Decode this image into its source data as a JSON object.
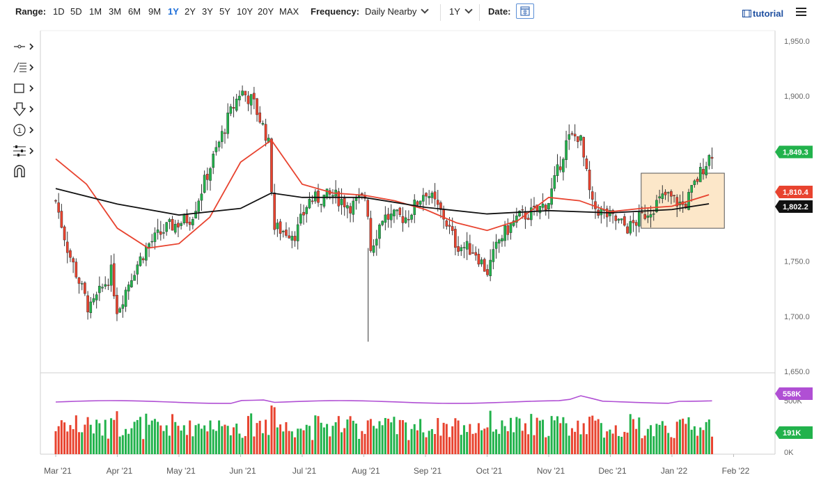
{
  "toolbar": {
    "range_label": "Range:",
    "ranges": [
      "1D",
      "5D",
      "1M",
      "3M",
      "6M",
      "9M",
      "1Y",
      "2Y",
      "3Y",
      "5Y",
      "10Y",
      "20Y",
      "MAX"
    ],
    "active_range": "1Y",
    "frequency_label": "Frequency:",
    "frequency_value": "Daily Nearby",
    "period_value": "1Y",
    "date_label": "Date:",
    "tutorial_label": "tutorial"
  },
  "colors": {
    "up": "#22b24c",
    "down": "#e8432f",
    "ma_fast": "#e8432f",
    "ma_slow": "#111111",
    "rsi": "#b04fd4",
    "highlight": "#fbe3c0",
    "accent": "#1e6fd9"
  },
  "chart_data": {
    "type": "candlestick",
    "title": "",
    "x_ticks": [
      "Mar '21",
      "Apr '21",
      "May '21",
      "Jun '21",
      "Jul '21",
      "Aug '21",
      "Sep '21",
      "Oct '21",
      "Nov '21",
      "Dec '21",
      "Jan '22",
      "Feb '22"
    ],
    "y_ticks": [
      "1,950.0",
      "1,900.0",
      "1,750.0",
      "1,700.0",
      "1,650.0"
    ],
    "y_range": [
      1650,
      1950
    ],
    "price_badges": [
      {
        "label": "1,849.3",
        "value": 1849.3,
        "color": "#22b24c"
      },
      {
        "label": "1,810.4",
        "value": 1810.4,
        "color": "#e8432f"
      },
      {
        "label": "1,802.2",
        "value": 1802.2,
        "color": "#111111"
      }
    ],
    "highlight_zone": {
      "start": "mid Dec '21",
      "end": "late Jan '22",
      "low": 1780,
      "high": 1830
    },
    "moving_average_fast": [
      {
        "month": 0,
        "v": 1843
      },
      {
        "month": 0.5,
        "v": 1820
      },
      {
        "month": 1,
        "v": 1780
      },
      {
        "month": 1.5,
        "v": 1762
      },
      {
        "month": 2,
        "v": 1766
      },
      {
        "month": 2.5,
        "v": 1790
      },
      {
        "month": 3,
        "v": 1840
      },
      {
        "month": 3.5,
        "v": 1860
      },
      {
        "month": 4,
        "v": 1820
      },
      {
        "month": 4.5,
        "v": 1812
      },
      {
        "month": 5,
        "v": 1810
      },
      {
        "month": 5.5,
        "v": 1805
      },
      {
        "month": 6,
        "v": 1797
      },
      {
        "month": 6.5,
        "v": 1785
      },
      {
        "month": 7,
        "v": 1778
      },
      {
        "month": 7.5,
        "v": 1787
      },
      {
        "month": 8,
        "v": 1808
      },
      {
        "month": 8.5,
        "v": 1805
      },
      {
        "month": 9,
        "v": 1795
      },
      {
        "month": 9.5,
        "v": 1798
      },
      {
        "month": 10,
        "v": 1800
      },
      {
        "month": 10.6,
        "v": 1810.4
      }
    ],
    "moving_average_slow": [
      {
        "month": 0,
        "v": 1816
      },
      {
        "month": 1,
        "v": 1802
      },
      {
        "month": 2,
        "v": 1792
      },
      {
        "month": 3,
        "v": 1798
      },
      {
        "month": 3.5,
        "v": 1812
      },
      {
        "month": 4,
        "v": 1808
      },
      {
        "month": 5,
        "v": 1808
      },
      {
        "month": 6,
        "v": 1799
      },
      {
        "month": 7,
        "v": 1793
      },
      {
        "month": 8,
        "v": 1796
      },
      {
        "month": 9,
        "v": 1794
      },
      {
        "month": 10,
        "v": 1797
      },
      {
        "month": 10.6,
        "v": 1802.2
      }
    ],
    "price_path": [
      {
        "month": 0,
        "v": 1805
      },
      {
        "month": 0.2,
        "v": 1760
      },
      {
        "month": 0.55,
        "v": 1705
      },
      {
        "month": 0.9,
        "v": 1740
      },
      {
        "month": 1.0,
        "v": 1705
      },
      {
        "month": 1.25,
        "v": 1740
      },
      {
        "month": 1.5,
        "v": 1765
      },
      {
        "month": 1.8,
        "v": 1780
      },
      {
        "month": 2.2,
        "v": 1790
      },
      {
        "month": 2.5,
        "v": 1835
      },
      {
        "month": 2.8,
        "v": 1880
      },
      {
        "month": 3.0,
        "v": 1905
      },
      {
        "month": 3.2,
        "v": 1895
      },
      {
        "month": 3.45,
        "v": 1860
      },
      {
        "month": 3.55,
        "v": 1780
      },
      {
        "month": 3.9,
        "v": 1775
      },
      {
        "month": 4.1,
        "v": 1805
      },
      {
        "month": 4.5,
        "v": 1810
      },
      {
        "month": 4.8,
        "v": 1800
      },
      {
        "month": 5.05,
        "v": 1810
      },
      {
        "month": 5.1,
        "v": 1760
      },
      {
        "month": 5.3,
        "v": 1790
      },
      {
        "month": 5.7,
        "v": 1790
      },
      {
        "month": 6.0,
        "v": 1815
      },
      {
        "month": 6.3,
        "v": 1790
      },
      {
        "month": 6.5,
        "v": 1765
      },
      {
        "month": 6.8,
        "v": 1760
      },
      {
        "month": 7.0,
        "v": 1740
      },
      {
        "month": 7.2,
        "v": 1770
      },
      {
        "month": 7.5,
        "v": 1790
      },
      {
        "month": 7.8,
        "v": 1795
      },
      {
        "month": 8.0,
        "v": 1805
      },
      {
        "month": 8.3,
        "v": 1860
      },
      {
        "month": 8.5,
        "v": 1865
      },
      {
        "month": 8.7,
        "v": 1800
      },
      {
        "month": 9.0,
        "v": 1790
      },
      {
        "month": 9.3,
        "v": 1780
      },
      {
        "month": 9.6,
        "v": 1795
      },
      {
        "month": 9.9,
        "v": 1810
      },
      {
        "month": 10.2,
        "v": 1800
      },
      {
        "month": 10.5,
        "v": 1835
      },
      {
        "month": 10.65,
        "v": 1849.3
      }
    ],
    "volume_badges": [
      {
        "label": "558K",
        "color": "#b04fd4"
      },
      {
        "label": "191K",
        "color": "#22b24c"
      }
    ],
    "volume_y_ticks": [
      "500K",
      "0K"
    ],
    "volume_scale_max": 600
  }
}
